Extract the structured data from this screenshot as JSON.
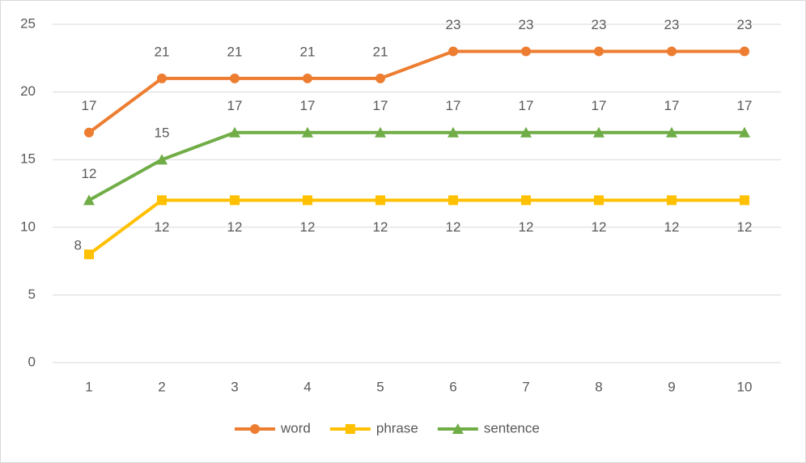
{
  "chart_data": {
    "type": "line",
    "categories": [
      "1",
      "2",
      "3",
      "4",
      "5",
      "6",
      "7",
      "8",
      "9",
      "10"
    ],
    "series": [
      {
        "name": "word",
        "color": "#ed7d31",
        "marker": "circle",
        "values": [
          17,
          21,
          21,
          21,
          21,
          23,
          23,
          23,
          23,
          23
        ]
      },
      {
        "name": "phrase",
        "color": "#ffc000",
        "marker": "square",
        "values": [
          8,
          12,
          12,
          12,
          12,
          12,
          12,
          12,
          12,
          12
        ]
      },
      {
        "name": "sentence",
        "color": "#70ad47",
        "marker": "triangle",
        "values": [
          12,
          15,
          17,
          17,
          17,
          17,
          17,
          17,
          17,
          17
        ]
      }
    ],
    "ylim": [
      0,
      25
    ],
    "yticks": [
      0,
      5,
      10,
      15,
      20,
      25
    ],
    "grid": true,
    "legend": "bottom",
    "data_labels": true
  }
}
